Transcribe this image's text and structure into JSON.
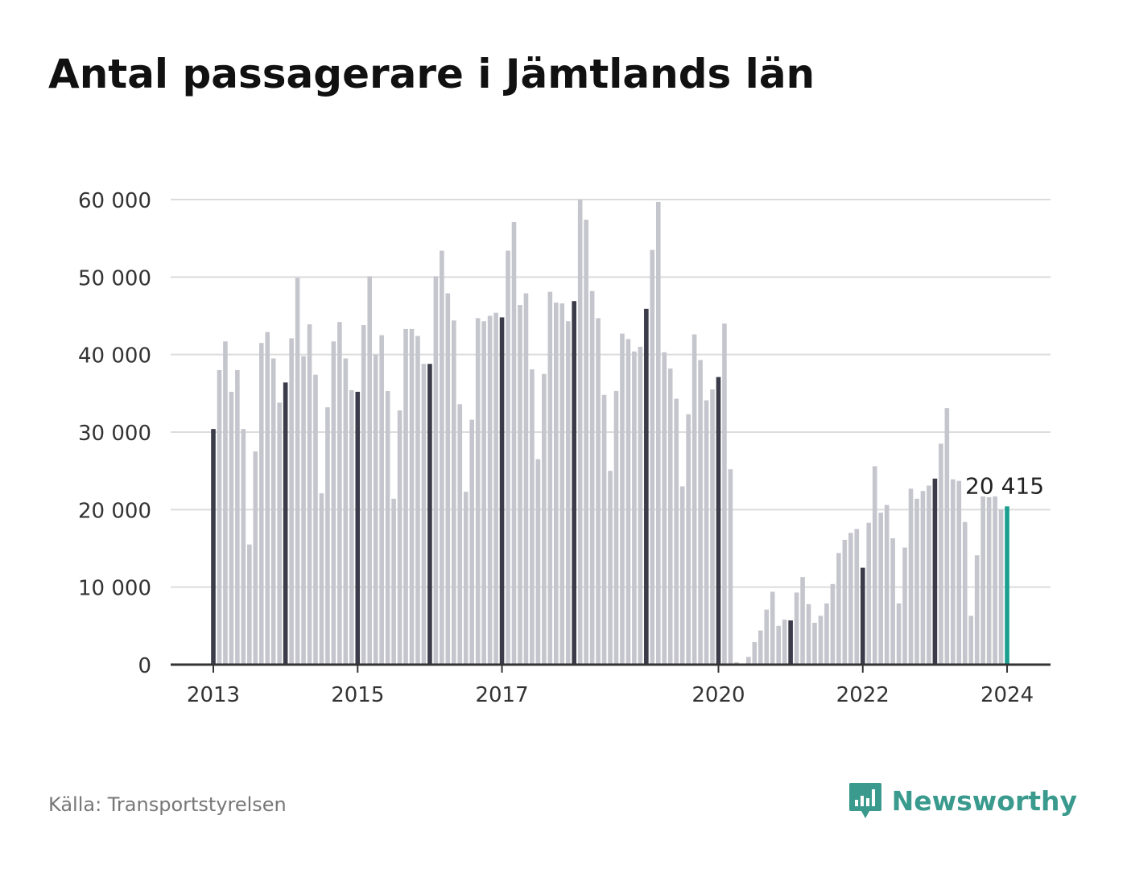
{
  "title": "Antal passagerare i Jämtlands län",
  "source": "Källa: Transportstyrelsen",
  "brand": {
    "name": "Newsworthy",
    "icon": "newsworthy-logo-icon",
    "color": "#3a9a8d"
  },
  "colors": {
    "bar": "#c5c5cd",
    "january_bar": "#3b3b4a",
    "latest_bar": "#1a9e8f",
    "grid": "#dcdcdc",
    "axis": "#333333"
  },
  "chart_data": {
    "type": "bar",
    "title": "Antal passagerare i Jämtlands län",
    "xlabel": "",
    "ylabel": "",
    "ylim": [
      0,
      60000
    ],
    "y_ticks": [
      0,
      10000,
      20000,
      30000,
      40000,
      50000,
      60000
    ],
    "y_tick_labels": [
      "0",
      "10 000",
      "20 000",
      "30 000",
      "40 000",
      "50 000",
      "60 000"
    ],
    "x_ticks": [
      {
        "index": 0,
        "label": "2013"
      },
      {
        "index": 24,
        "label": "2015"
      },
      {
        "index": 48,
        "label": "2017"
      },
      {
        "index": 84,
        "label": "2020"
      },
      {
        "index": 108,
        "label": "2022"
      },
      {
        "index": 132,
        "label": "2024"
      }
    ],
    "start": "2013-01",
    "frequency": "monthly",
    "grid": true,
    "highlight": "January of each year in dark color; latest value in teal",
    "latest_label": "20 415",
    "values": [
      30400,
      38000,
      41700,
      35200,
      38000,
      30400,
      15500,
      27500,
      41500,
      42900,
      39500,
      33800,
      36400,
      42100,
      49900,
      39800,
      43900,
      37400,
      22100,
      33200,
      41700,
      44200,
      39500,
      35400,
      35200,
      43800,
      50100,
      40000,
      42500,
      35300,
      21400,
      32800,
      43300,
      43300,
      42400,
      38800,
      38800,
      50100,
      53400,
      47900,
      44400,
      33600,
      22300,
      31600,
      44700,
      44300,
      45000,
      45400,
      44800,
      53400,
      57100,
      46400,
      47900,
      38100,
      26500,
      37500,
      48100,
      46700,
      46600,
      44300,
      46900,
      60000,
      57400,
      48200,
      44700,
      34800,
      25000,
      35300,
      42700,
      42000,
      40400,
      41000,
      45900,
      53500,
      59700,
      40300,
      38200,
      34300,
      23000,
      32300,
      42600,
      39300,
      34100,
      35500,
      37100,
      44000,
      25200,
      300,
      150,
      1000,
      2900,
      4400,
      7100,
      9400,
      5000,
      5800,
      5700,
      9300,
      11300,
      7800,
      5400,
      6300,
      7900,
      10400,
      14400,
      16100,
      17000,
      17500,
      12500,
      18300,
      25600,
      19600,
      20600,
      16300,
      7900,
      15100,
      22700,
      21400,
      22400,
      23100,
      24000,
      28500,
      33100,
      23900,
      23700,
      18400,
      6300,
      14100,
      21700,
      21600,
      21700,
      20000,
      20415
    ]
  }
}
